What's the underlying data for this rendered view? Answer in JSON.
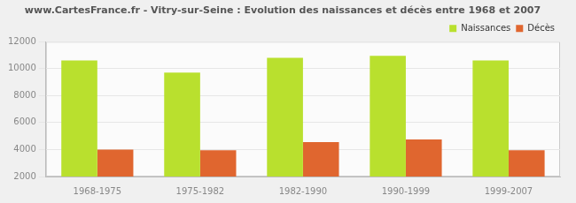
{
  "chart_data": {
    "type": "bar",
    "title": "www.CartesFrance.fr - Vitry-sur-Seine : Evolution des naissances et décès entre 1968 et 2007",
    "categories": [
      "1968-1975",
      "1975-1982",
      "1982-1990",
      "1990-1999",
      "1999-2007"
    ],
    "series": [
      {
        "name": "Naissances",
        "color": "#b9e02e",
        "values": [
          10600,
          9700,
          10800,
          10950,
          10600
        ]
      },
      {
        "name": "Décès",
        "color": "#e0662f",
        "values": [
          4000,
          3950,
          4550,
          4750,
          3950
        ]
      }
    ],
    "ylim": [
      2000,
      12000
    ],
    "yticks": [
      2000,
      4000,
      6000,
      8000,
      10000,
      12000
    ],
    "grid": true,
    "legend": "top-right"
  }
}
